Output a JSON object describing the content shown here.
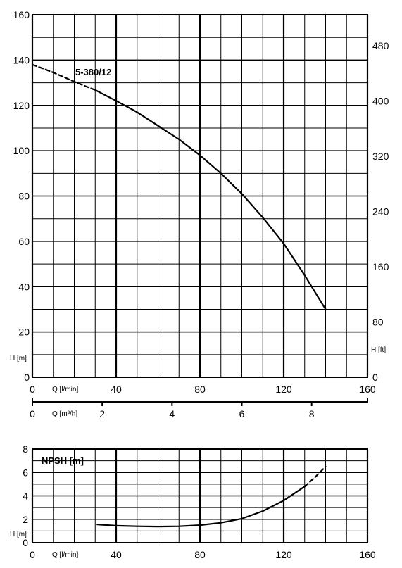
{
  "chart_data": [
    {
      "type": "line",
      "title": "",
      "curve_label": "5-380/12",
      "x_unit_label": "Q [l/min]",
      "x2_unit_label": "Q [m³/h]",
      "y_left_label": "H [m]",
      "y_right_label": "H [ft]",
      "xlim": [
        0,
        160
      ],
      "ylim": [
        0,
        160
      ],
      "x_ticks": [
        0,
        40,
        80,
        120,
        160
      ],
      "y_ticks": [
        0,
        20,
        40,
        60,
        80,
        100,
        120,
        140,
        160
      ],
      "y_right_ticks": [
        0,
        80,
        160,
        240,
        320,
        400,
        480
      ],
      "x2_ticks": [
        0,
        2,
        4,
        6,
        8
      ],
      "grid": true,
      "series": [
        {
          "name": "5-380/12",
          "style": "dashed",
          "x": [
            0,
            5,
            10,
            15,
            20,
            25,
            30
          ],
          "y": [
            138,
            136.3,
            134.5,
            132.5,
            130.5,
            128.6,
            126.8
          ]
        },
        {
          "name": "5-380/12",
          "style": "solid",
          "x": [
            30,
            40,
            50,
            60,
            70,
            80,
            90,
            100,
            110,
            120,
            130,
            140
          ],
          "y": [
            126.8,
            122,
            117,
            111,
            105,
            98,
            90,
            81,
            70.5,
            59,
            45,
            30
          ]
        }
      ]
    },
    {
      "type": "line",
      "title": "",
      "curve_label": "NPSH [m]",
      "x_unit_label": "Q [l/min]",
      "y_left_label": "H [m]",
      "xlim": [
        0,
        160
      ],
      "ylim": [
        0,
        8
      ],
      "x_ticks": [
        0,
        40,
        80,
        120,
        160
      ],
      "y_ticks": [
        0,
        2,
        4,
        6,
        8
      ],
      "grid": true,
      "series": [
        {
          "name": "NPSH [m]",
          "style": "solid",
          "x": [
            31,
            40,
            50,
            60,
            70,
            80,
            90,
            100,
            110,
            120,
            130
          ],
          "y": [
            1.55,
            1.45,
            1.4,
            1.38,
            1.4,
            1.5,
            1.7,
            2.05,
            2.7,
            3.6,
            4.8
          ]
        },
        {
          "name": "NPSH [m]",
          "style": "dashed",
          "x": [
            130,
            135,
            140
          ],
          "y": [
            4.8,
            5.6,
            6.5
          ]
        }
      ]
    }
  ]
}
